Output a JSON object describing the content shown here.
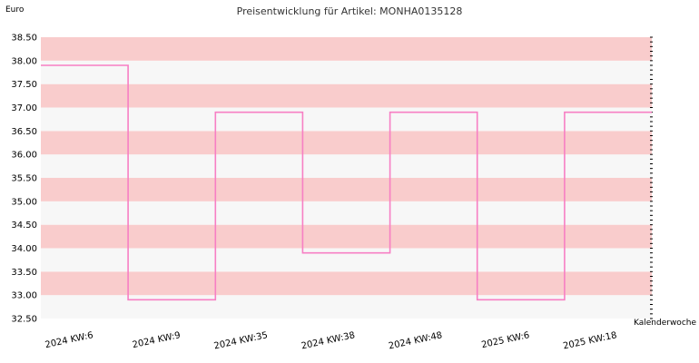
{
  "chart_data": {
    "type": "line",
    "title": "Preisentwicklung für Artikel: MONHA0135128",
    "ylabel": "Euro",
    "xlabel": "Kalenderwoche",
    "categories": [
      "2024 KW:6",
      "2024 KW:9",
      "2024 KW:35",
      "2024 KW:38",
      "2024 KW:48",
      "2025 KW:6",
      "2025 KW:18"
    ],
    "series": [
      {
        "values": [
          37.9,
          32.9,
          36.9,
          33.9,
          36.9,
          32.9,
          36.9
        ]
      }
    ],
    "ylim": [
      32.5,
      38.5
    ],
    "yticks": [
      "32.50",
      "33.00",
      "33.50",
      "34.00",
      "34.50",
      "35.00",
      "35.50",
      "36.00",
      "36.50",
      "37.00",
      "37.50",
      "38.00",
      "38.50"
    ],
    "step": true,
    "band_colors": [
      "#f7f7f7",
      "#f9cccc"
    ],
    "line_color": "#f77fc4"
  }
}
